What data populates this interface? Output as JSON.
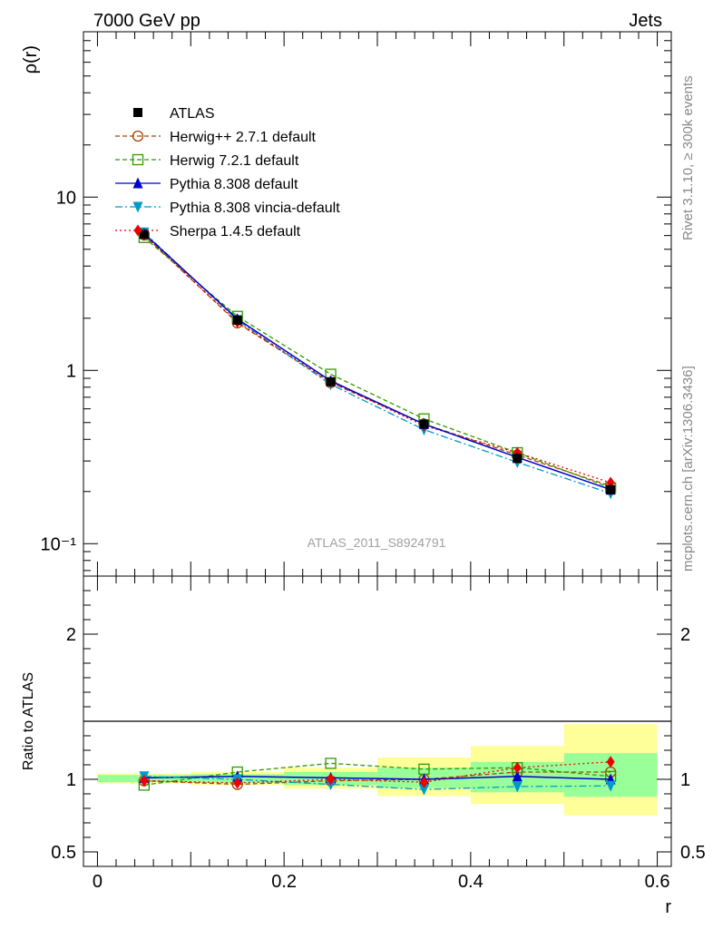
{
  "header": {
    "left": "7000 GeV pp",
    "right": "Jets",
    "side_upper": "Rivet 3.1.10, ≥ 300k events",
    "side_lower": "mcplots.cern.ch [arXiv:1306.3436]"
  },
  "chart_data": [
    {
      "type": "line",
      "panel": "main",
      "ylabel": "ρ(r)",
      "xlabel": "r",
      "yscale": "log",
      "xlim": [
        -0.015,
        0.615
      ],
      "ylim": [
        0.065,
        90
      ],
      "y_tick_labels": [
        "10",
        "1",
        "10⁻¹"
      ],
      "y_tick_values": [
        10,
        1,
        0.1
      ],
      "watermark": "ATLAS_2011_S8924791",
      "x": [
        0.05,
        0.15,
        0.25,
        0.35,
        0.45,
        0.55
      ],
      "series": [
        {
          "name": "ATLAS",
          "color": "#000000",
          "marker": "square-filled",
          "line": "none",
          "values": [
            6.1,
            1.95,
            0.86,
            0.49,
            0.31,
            0.205
          ]
        },
        {
          "name": "Herwig++ 2.7.1 default",
          "color": "#a84400",
          "marker": "circle-open",
          "line": "dashed",
          "values": [
            6.05,
            1.88,
            0.85,
            0.49,
            0.325,
            0.215
          ]
        },
        {
          "name": "Herwig 7.2.1 default",
          "color": "#339900",
          "marker": "square-open",
          "line": "dashed",
          "values": [
            5.85,
            2.05,
            0.95,
            0.525,
            0.335,
            0.21
          ]
        },
        {
          "name": "Pythia 8.308 default",
          "color": "#0000cc",
          "marker": "triangle-up",
          "line": "solid",
          "values": [
            6.15,
            1.98,
            0.87,
            0.49,
            0.315,
            0.205
          ]
        },
        {
          "name": "Pythia 8.308 vincia-default",
          "color": "#0099cc",
          "marker": "triangle-down",
          "line": "dashdot",
          "values": [
            6.25,
            1.95,
            0.83,
            0.455,
            0.295,
            0.195
          ]
        },
        {
          "name": "Sherpa 1.4.5 default",
          "color": "#ee0000",
          "marker": "diamond",
          "line": "dotted",
          "values": [
            6.05,
            1.9,
            0.86,
            0.48,
            0.335,
            0.225
          ]
        }
      ]
    },
    {
      "type": "line",
      "panel": "ratio",
      "ylabel": "Ratio to ATLAS",
      "xlabel": "r",
      "ylim": [
        0.4,
        2.4
      ],
      "x_tick_labels": [
        "0",
        "0.2",
        "0.4",
        "0.6"
      ],
      "x_tick_values": [
        0,
        0.2,
        0.4,
        0.6
      ],
      "y_tick_labels": [
        "0.5",
        "1",
        "2"
      ],
      "y_tick_values": [
        0.5,
        1,
        2
      ],
      "bands": [
        {
          "x0": 0.0,
          "x1": 0.1,
          "yellow": [
            0.97,
            1.04
          ],
          "green": [
            0.98,
            1.03
          ]
        },
        {
          "x0": 0.1,
          "x1": 0.2,
          "yellow": [
            0.96,
            1.05
          ],
          "green": [
            0.975,
            1.035
          ]
        },
        {
          "x0": 0.2,
          "x1": 0.3,
          "yellow": [
            0.935,
            1.08
          ],
          "green": [
            0.96,
            1.05
          ]
        },
        {
          "x0": 0.3,
          "x1": 0.4,
          "yellow": [
            0.885,
            1.15
          ],
          "green": [
            0.94,
            1.08
          ]
        },
        {
          "x0": 0.4,
          "x1": 0.5,
          "yellow": [
            0.83,
            1.23
          ],
          "green": [
            0.91,
            1.12
          ]
        },
        {
          "x0": 0.5,
          "x1": 0.6,
          "yellow": [
            0.75,
            1.38
          ],
          "green": [
            0.88,
            1.18
          ]
        }
      ],
      "series": [
        {
          "name": "Herwig++ 2.7.1 default",
          "values": [
            0.99,
            0.965,
            0.99,
            1.0,
            1.05,
            1.05
          ]
        },
        {
          "name": "Herwig 7.2.1 default",
          "values": [
            0.96,
            1.05,
            1.11,
            1.07,
            1.08,
            1.02
          ]
        },
        {
          "name": "Pythia 8.308 default",
          "values": [
            1.01,
            1.02,
            1.01,
            1.0,
            1.02,
            1.0
          ]
        },
        {
          "name": "Pythia 8.308 vincia-default",
          "values": [
            1.02,
            1.0,
            0.965,
            0.93,
            0.95,
            0.955
          ]
        },
        {
          "name": "Sherpa 1.4.5 default",
          "values": [
            0.99,
            0.975,
            1.0,
            0.98,
            1.08,
            1.12
          ]
        }
      ]
    }
  ]
}
